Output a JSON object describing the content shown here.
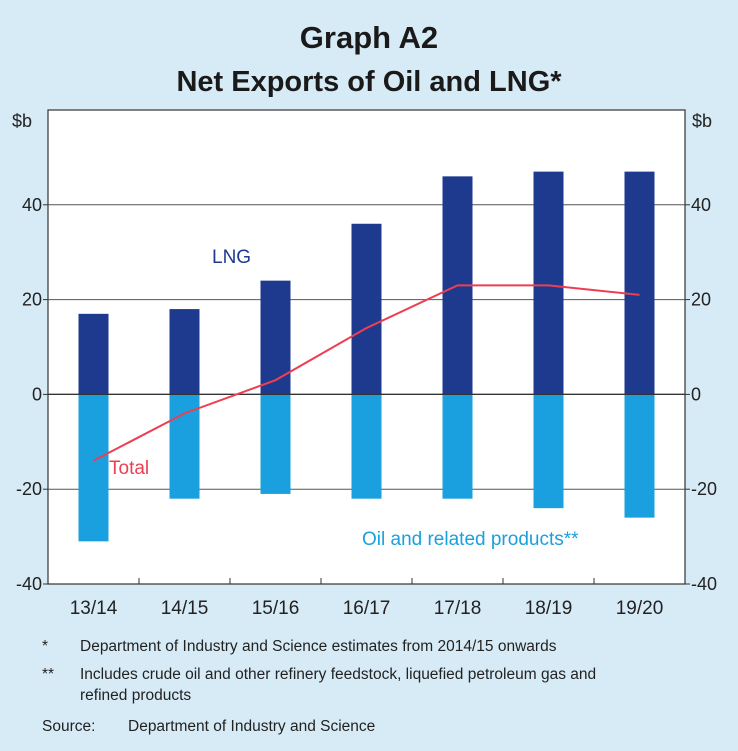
{
  "header": {
    "graph_number": "Graph A2",
    "title": "Net Exports of Oil and LNG*"
  },
  "chart_data": {
    "type": "bar",
    "title": "Net Exports of Oil and LNG*",
    "categories": [
      "13/14",
      "14/15",
      "15/16",
      "16/17",
      "17/18",
      "18/19",
      "19/20"
    ],
    "series": [
      {
        "name": "LNG",
        "kind": "bar",
        "color": "#1e3a8f",
        "values": [
          17,
          18,
          24,
          36,
          46,
          47,
          47
        ]
      },
      {
        "name": "Oil and related products**",
        "kind": "bar",
        "color": "#1aa0de",
        "values": [
          -31,
          -22,
          -21,
          -22,
          -22,
          -24,
          -26
        ]
      },
      {
        "name": "Total",
        "kind": "line",
        "color": "#ee3e52",
        "values": [
          -14,
          -4,
          3,
          14,
          23,
          23,
          21
        ]
      }
    ],
    "ylim": [
      -40,
      60
    ],
    "yticks": [
      "40",
      "20",
      "0",
      "-20",
      "-40"
    ],
    "ytick_values": [
      40,
      20,
      0,
      -20,
      -40
    ],
    "ylabel_left": "$b",
    "ylabel_right": "$b",
    "grid": true
  },
  "labels": {
    "lng": "LNG",
    "total": "Total",
    "oil": "Oil and related products**"
  },
  "notes": [
    {
      "mark": "*",
      "text": "Department of Industry and Science estimates from 2014/15 onwards"
    },
    {
      "mark": "**",
      "text": "Includes crude oil and other refinery feedstock, liquefied petroleum gas and refined products"
    }
  ],
  "source": {
    "label": "Source:",
    "text": "Department of Industry and Science"
  }
}
